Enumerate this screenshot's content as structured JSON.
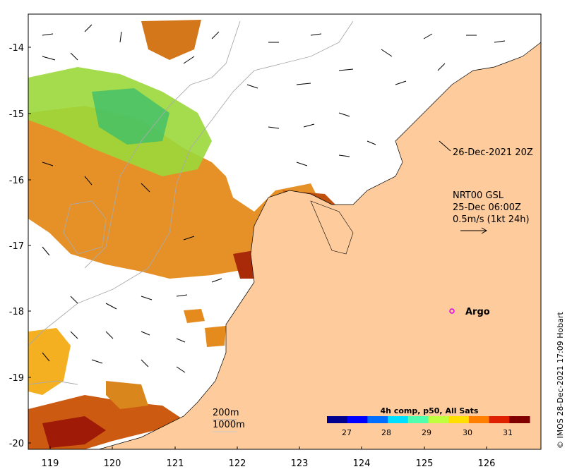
{
  "map": {
    "longitude_ticks": [
      "119",
      "120",
      "121",
      "122",
      "123",
      "124",
      "125",
      "126"
    ],
    "latitude_ticks": [
      "-14",
      "-15",
      "-16",
      "-17",
      "-18",
      "-19",
      "-20"
    ],
    "land_color": "#fdcb9c",
    "ocean_color": "#ffffff"
  },
  "annotations": {
    "satellite_timestamp": "26-Dec-2021 20Z",
    "current_source": "NRT00 GSL",
    "current_date": "25-Dec 06:00Z",
    "vector_scale": "0.5m/s (1kt 24h)",
    "argo_label": "Argo",
    "isobath_200": "200m",
    "isobath_1000": "1000m",
    "credit": "© IMOS 28-Dec-2021 17:09 Hobart"
  },
  "colorbar": {
    "title": "4h comp, p50, All Sats",
    "ticks": [
      "27",
      "28",
      "29",
      "30",
      "31"
    ],
    "colors": [
      "#00008f",
      "#0000ff",
      "#006fff",
      "#00dfff",
      "#4fffaf",
      "#bfff3f",
      "#ffdf00",
      "#ff7f00",
      "#df2000",
      "#800000"
    ]
  },
  "argo_color": "#e600e6"
}
